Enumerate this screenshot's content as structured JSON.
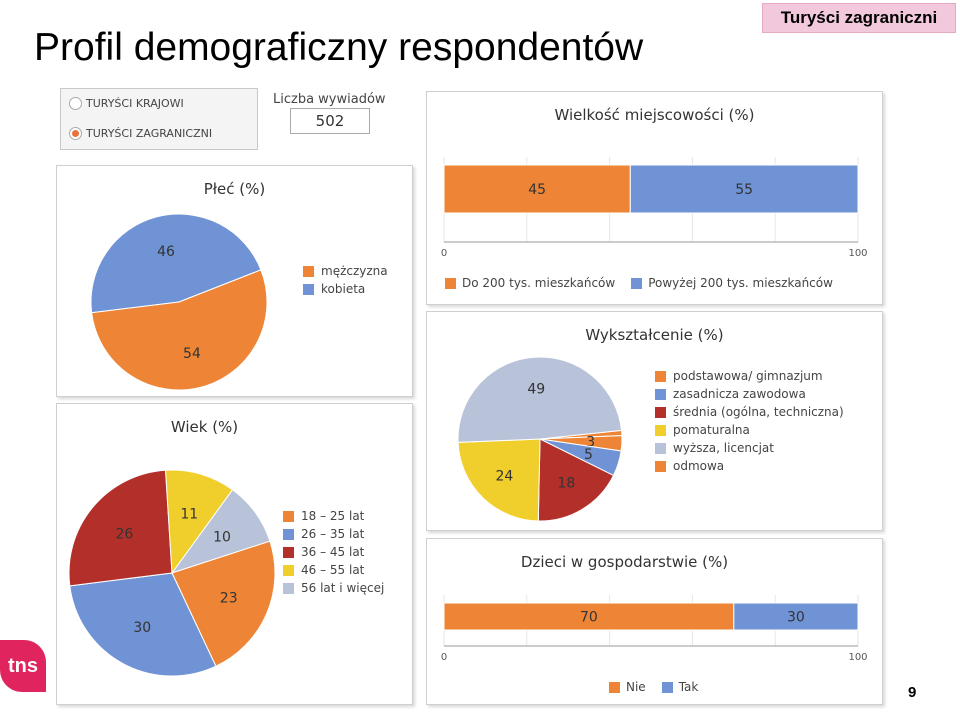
{
  "slide": {
    "title": "Profil demograficzny respondentów",
    "badge": "Turyści zagraniczni",
    "page_number": "9",
    "logo_text": "tns"
  },
  "filter": {
    "options": [
      {
        "label": "TURYŚCI KRAJOWI",
        "selected": false
      },
      {
        "label": "TURYŚCI ZAGRANICZNI",
        "selected": true
      }
    ],
    "count_label": "Liczba wywiadów",
    "count_value": "502"
  },
  "colors": {
    "orange": "#ee8536",
    "blue": "#6f93d4",
    "darkred": "#b3302a",
    "yellow": "#f0cf2d",
    "lightblue": "#b8c3d9",
    "red_orange": "#e8743b"
  },
  "chart_data": [
    {
      "id": "plec",
      "type": "pie",
      "title": "Płeć (%)",
      "labels": [
        "mężczyzna",
        "kobieta"
      ],
      "values": [
        54,
        46
      ],
      "colors": [
        "#ee8536",
        "#6f93d4"
      ]
    },
    {
      "id": "wiek",
      "type": "pie",
      "title": "Wiek (%)",
      "labels": [
        "18 – 25 lat",
        "26 – 35 lat",
        "36 – 45 lat",
        "46 – 55 lat",
        "56 lat i więcej"
      ],
      "values": [
        23,
        30,
        26,
        11,
        10
      ],
      "colors": [
        "#ee8536",
        "#6f93d4",
        "#b3302a",
        "#f0cf2d",
        "#b8c3d9"
      ]
    },
    {
      "id": "miejscowosc",
      "type": "bar",
      "title": "Wielkość miejscowości (%)",
      "series": [
        {
          "name": "Do 200 tys. mieszkańców",
          "value": 45,
          "color": "#ee8536"
        },
        {
          "name": "Powyżej 200 tys. mieszkańców",
          "value": 55,
          "color": "#6f93d4"
        }
      ],
      "xlim": [
        0,
        100
      ],
      "ticks": [
        "0",
        "100"
      ]
    },
    {
      "id": "wyksztalcenie",
      "type": "pie",
      "title": "Wykształcenie (%)",
      "labels": [
        "podstawowa/ gimnazjum",
        "zasadnicza zawodowa",
        "średnia (ogólna, techniczna)",
        "pomaturalna",
        "wyższa, licencjat",
        "odmowa"
      ],
      "values": [
        3,
        5,
        18,
        24,
        49,
        1
      ],
      "colors": [
        "#ee8536",
        "#6f93d4",
        "#b3302a",
        "#f0cf2d",
        "#b8c3d9",
        "#ee8536"
      ]
    },
    {
      "id": "dzieci",
      "type": "bar",
      "title": "Dzieci w gospodarstwie (%)",
      "series": [
        {
          "name": "Nie",
          "value": 70,
          "color": "#ee8536"
        },
        {
          "name": "Tak",
          "value": 30,
          "color": "#6f93d4"
        }
      ],
      "xlim": [
        0,
        100
      ],
      "ticks": [
        "0",
        "100"
      ]
    }
  ]
}
